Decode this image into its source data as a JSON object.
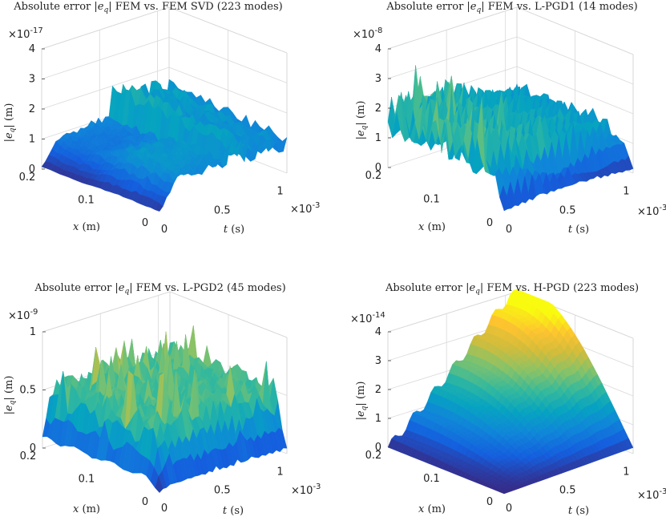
{
  "chart_data": [
    {
      "type": "surface",
      "title": "Absolute error |e_q| FEM vs. FEM SVD (223 modes)",
      "title_parts": [
        "Absolute error |",
        "e",
        "q",
        "| FEM vs. FEM SVD (223 modes)"
      ],
      "xlabel_parts": [
        "x",
        " (m)"
      ],
      "tlabel_parts": [
        "t",
        " (s)"
      ],
      "zlabel_parts": [
        "|",
        "e",
        "q",
        "| (m)"
      ],
      "z_multiplier": "×10",
      "z_exponent": "-17",
      "t_multiplier": "×10",
      "t_exponent": "-3",
      "x_ticks": [
        "0",
        "0.1",
        "0.2"
      ],
      "t_ticks": [
        "0",
        "0.5",
        "1"
      ],
      "z_ticks": [
        "0",
        "1",
        "2",
        "3",
        "4"
      ],
      "zlim": [
        0,
        4
      ],
      "xlim": [
        0,
        0.2
      ],
      "tlim": [
        0,
        1.1
      ],
      "pattern": "svd",
      "peak_z": 3.3
    },
    {
      "type": "surface",
      "title": "Absolute error |e_q| FEM vs. L-PGD1 (14 modes)",
      "title_parts": [
        "Absolute error |",
        "e",
        "q",
        "| FEM vs. L-PGD1 (14 modes)"
      ],
      "xlabel_parts": [
        "x",
        " (m)"
      ],
      "tlabel_parts": [
        "t",
        " (s)"
      ],
      "zlabel_parts": [
        "|",
        "e",
        "q",
        "| (m)"
      ],
      "z_multiplier": "×10",
      "z_exponent": "-8",
      "t_multiplier": "×10",
      "t_exponent": "-3",
      "x_ticks": [
        "0",
        "0.1",
        "0.2"
      ],
      "t_ticks": [
        "0",
        "0.5",
        "1"
      ],
      "z_ticks": [
        "0",
        "1",
        "2",
        "3",
        "4"
      ],
      "zlim": [
        0,
        4
      ],
      "xlim": [
        0,
        0.2
      ],
      "tlim": [
        0,
        1.1
      ],
      "pattern": "lpgd1",
      "peak_z": 4.1
    },
    {
      "type": "surface",
      "title": "Absolute error |e_q| FEM vs. L-PGD2 (45 modes)",
      "title_parts": [
        "Absolute error |",
        "e",
        "q",
        "| FEM vs. L-PGD2 (45 modes)"
      ],
      "xlabel_parts": [
        "x",
        " (m)"
      ],
      "tlabel_parts": [
        "t",
        " (s)"
      ],
      "zlabel_parts": [
        "|",
        "e",
        "q",
        "| (m)"
      ],
      "z_multiplier": "×10",
      "z_exponent": "-9",
      "t_multiplier": "×10",
      "t_exponent": "-3",
      "x_ticks": [
        "0",
        "0.1",
        "0.2"
      ],
      "t_ticks": [
        "0",
        "0.5",
        "1"
      ],
      "z_ticks": [
        "0",
        "0.5",
        "1"
      ],
      "zlim": [
        0,
        1
      ],
      "xlim": [
        0,
        0.2
      ],
      "tlim": [
        0,
        1.1
      ],
      "pattern": "lpgd2",
      "peak_z": 0.9
    },
    {
      "type": "surface",
      "title": "Absolute error |e_q| FEM vs. H-PGD (223 modes)",
      "title_parts": [
        "Absolute error |",
        "e",
        "q",
        "| FEM vs. H-PGD (223 modes)"
      ],
      "xlabel_parts": [
        "x",
        " (m)"
      ],
      "tlabel_parts": [
        "t",
        " (s)"
      ],
      "zlabel_parts": [
        "|",
        "e",
        "q",
        "| (m)"
      ],
      "z_multiplier": "×10",
      "z_exponent": "-14",
      "t_multiplier": "×10",
      "t_exponent": "-3",
      "x_ticks": [
        "0",
        "0.1",
        "0.2"
      ],
      "t_ticks": [
        "0",
        "0.5",
        "1"
      ],
      "z_ticks": [
        "0",
        "1",
        "2",
        "3",
        "4"
      ],
      "zlim": [
        0,
        4
      ],
      "xlim": [
        0,
        0.2
      ],
      "tlim": [
        0,
        1.1
      ],
      "pattern": "hpgd",
      "peak_z": 4.4
    }
  ]
}
